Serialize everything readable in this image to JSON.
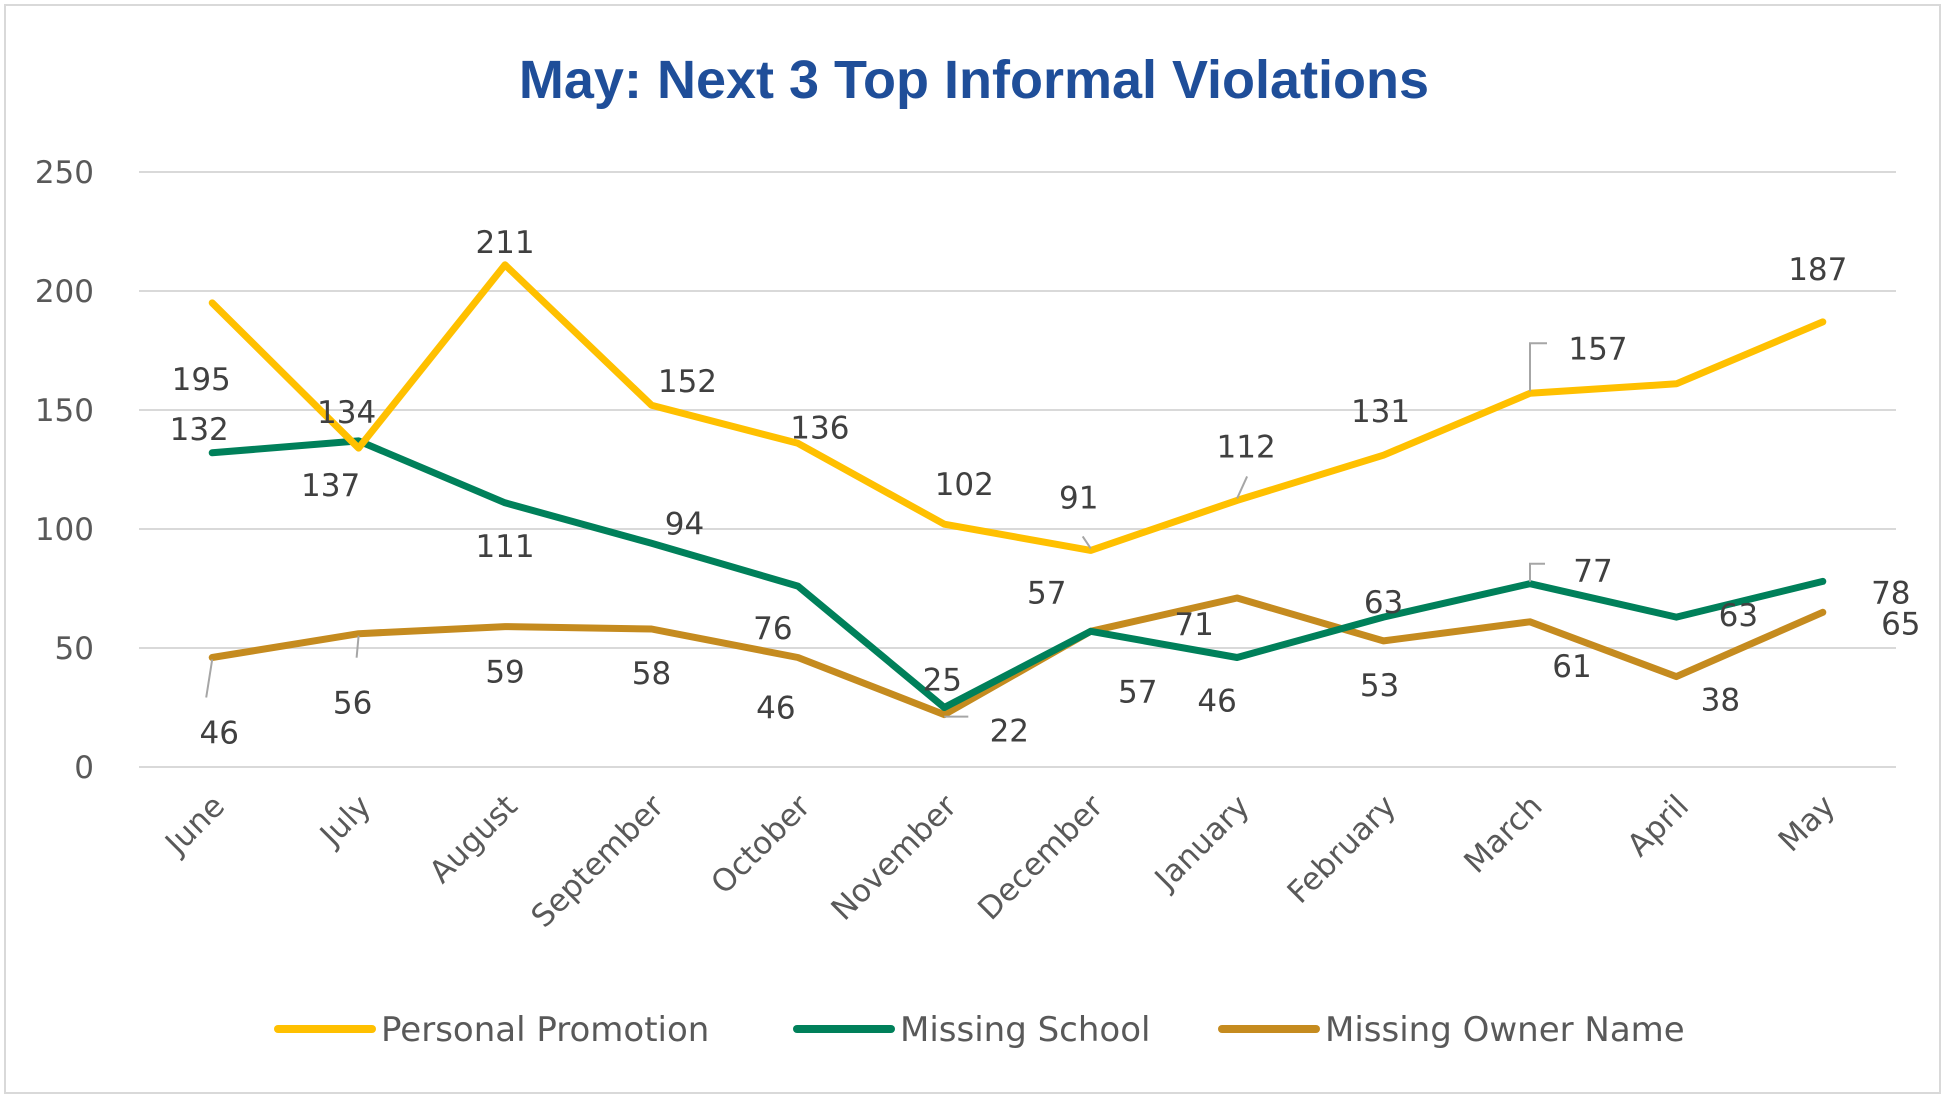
{
  "chart_data": {
    "type": "line",
    "title": "May: Next 3 Top Informal Violations",
    "categories": [
      "June",
      "July",
      "August",
      "September",
      "October",
      "November",
      "December",
      "January",
      "February",
      "March",
      "April",
      "May"
    ],
    "ylim": [
      0,
      250
    ],
    "yticks": [
      0,
      50,
      100,
      150,
      200,
      250
    ],
    "grid": true,
    "legend_position": "bottom",
    "series": [
      {
        "name": "Personal Promotion",
        "color": "#ffc000",
        "values": [
          195,
          134,
          211,
          152,
          136,
          102,
          91,
          112,
          131,
          157,
          161,
          187
        ],
        "labels": [
          "195",
          "134",
          "211",
          "152",
          "136",
          "102",
          "91",
          "112",
          "131",
          "157",
          "",
          "187"
        ]
      },
      {
        "name": "Missing School",
        "color": "#00805a",
        "values": [
          132,
          137,
          111,
          94,
          76,
          25,
          57,
          46,
          63,
          77,
          63,
          78
        ],
        "labels": [
          "132",
          "137",
          "111",
          "94",
          "76",
          "25",
          "57",
          "46",
          "63",
          "77",
          "63",
          "78"
        ]
      },
      {
        "name": "Missing Owner Name",
        "color": "#c58b1f",
        "values": [
          46,
          56,
          59,
          58,
          46,
          22,
          57,
          71,
          53,
          61,
          38,
          65
        ],
        "labels": [
          "46",
          "56",
          "59",
          "58",
          "46",
          "22",
          "57",
          "71",
          "53",
          "61",
          "38",
          "65"
        ]
      }
    ]
  }
}
